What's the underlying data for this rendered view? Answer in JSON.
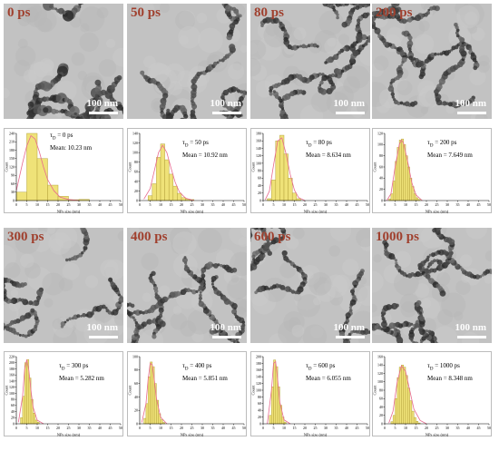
{
  "chart_data": [
    {
      "type": "bar",
      "delay_label": "0 ps",
      "stat_tau": "0 ps",
      "stat_mean": "Mean: 10.23 nm",
      "scale_label": "100 nm",
      "xlabel": "NPs size (nm)",
      "ylabel": "Count",
      "xlim": [
        0,
        50
      ],
      "ylim": [
        0,
        240
      ],
      "xticks": [
        0,
        5,
        10,
        15,
        20,
        25,
        30,
        35,
        40,
        45,
        50
      ],
      "yticks": [
        0,
        30,
        60,
        90,
        120,
        150,
        180,
        210,
        240
      ],
      "bin_starts": [
        0,
        5,
        10,
        15,
        20,
        25,
        30
      ],
      "bin_width": 5,
      "values": [
        30,
        240,
        150,
        55,
        15,
        3,
        4
      ],
      "fit": [
        [
          0,
          35
        ],
        [
          3,
          135
        ],
        [
          5,
          195
        ],
        [
          7,
          232
        ],
        [
          9,
          220
        ],
        [
          11,
          175
        ],
        [
          13,
          120
        ],
        [
          15,
          75
        ],
        [
          18,
          35
        ],
        [
          21,
          12
        ],
        [
          25,
          4
        ],
        [
          30,
          0
        ]
      ]
    },
    {
      "type": "bar",
      "delay_label": "50 ps",
      "stat_tau": "50 ps",
      "stat_mean": "Mean = 10.92 nm",
      "scale_label": "100 nm",
      "xlabel": "NPs size (nm)",
      "ylabel": "Count",
      "xlim": [
        0,
        50
      ],
      "ylim": [
        0,
        140
      ],
      "xticks": [
        0,
        5,
        10,
        15,
        20,
        25,
        30,
        35,
        40,
        45,
        50
      ],
      "yticks": [
        0,
        20,
        40,
        60,
        80,
        100,
        120,
        140
      ],
      "bin_starts": [
        4,
        6,
        8,
        10,
        12,
        14,
        16,
        18,
        20,
        22,
        24
      ],
      "bin_width": 2,
      "values": [
        10,
        35,
        90,
        118,
        85,
        55,
        30,
        15,
        6,
        3,
        2
      ],
      "fit": [
        [
          2,
          3
        ],
        [
          5,
          25
        ],
        [
          7,
          62
        ],
        [
          9,
          100
        ],
        [
          11,
          115
        ],
        [
          13,
          100
        ],
        [
          15,
          68
        ],
        [
          17,
          38
        ],
        [
          19,
          18
        ],
        [
          22,
          5
        ],
        [
          26,
          0
        ]
      ]
    },
    {
      "type": "bar",
      "delay_label": "80 ps",
      "stat_tau": "80 ps",
      "stat_mean": "Mean = 8.634 nm",
      "scale_label": "100 nm",
      "xlabel": "NPs size (nm)",
      "ylabel": "Count",
      "xlim": [
        0,
        50
      ],
      "ylim": [
        0,
        180
      ],
      "xticks": [
        0,
        5,
        10,
        15,
        20,
        25,
        30,
        35,
        40,
        45,
        50
      ],
      "yticks": [
        0,
        20,
        40,
        60,
        80,
        100,
        120,
        140,
        160,
        180
      ],
      "bin_starts": [
        2,
        4,
        6,
        8,
        10,
        12,
        14,
        16
      ],
      "bin_width": 2,
      "values": [
        5,
        55,
        160,
        175,
        125,
        60,
        20,
        5
      ],
      "fit": [
        [
          1,
          2
        ],
        [
          3,
          25
        ],
        [
          5,
          95
        ],
        [
          7,
          160
        ],
        [
          9,
          168
        ],
        [
          11,
          125
        ],
        [
          13,
          70
        ],
        [
          15,
          28
        ],
        [
          17,
          8
        ],
        [
          20,
          0
        ]
      ]
    },
    {
      "type": "bar",
      "delay_label": "200 ps",
      "stat_tau": "200 ps",
      "stat_mean": "Mean = 7.649 nm",
      "scale_label": "100 nm",
      "xlabel": "NPs size (nm)",
      "ylabel": "Count",
      "xlim": [
        0,
        50
      ],
      "ylim": [
        0,
        120
      ],
      "xticks": [
        0,
        5,
        10,
        15,
        20,
        25,
        30,
        35,
        40,
        45,
        50
      ],
      "yticks": [
        0,
        20,
        40,
        60,
        80,
        100,
        120
      ],
      "bin_starts": [
        2,
        3,
        4,
        5,
        6,
        7,
        8,
        9,
        10,
        11,
        12,
        13,
        14,
        15,
        16
      ],
      "bin_width": 1,
      "values": [
        3,
        12,
        35,
        70,
        95,
        108,
        110,
        100,
        80,
        60,
        40,
        25,
        12,
        5,
        2
      ],
      "fit": [
        [
          1,
          0
        ],
        [
          3,
          12
        ],
        [
          5,
          60
        ],
        [
          7,
          100
        ],
        [
          8,
          108
        ],
        [
          9,
          103
        ],
        [
          11,
          70
        ],
        [
          13,
          32
        ],
        [
          15,
          10
        ],
        [
          18,
          0
        ]
      ]
    },
    {
      "type": "bar",
      "delay_label": "300 ps",
      "stat_tau": "300 ps",
      "stat_mean": "Mean = 5.282 nm",
      "scale_label": "100 nm",
      "xlabel": "NPs size (nm)",
      "ylabel": "Count",
      "xlim": [
        0,
        50
      ],
      "ylim": [
        0,
        220
      ],
      "xticks": [
        0,
        5,
        10,
        15,
        20,
        25,
        30,
        35,
        40,
        45,
        50
      ],
      "yticks": [
        0,
        20,
        40,
        60,
        80,
        100,
        120,
        140,
        160,
        180,
        200,
        220
      ],
      "bin_starts": [
        2,
        3,
        4,
        5,
        6,
        7,
        8,
        9,
        10
      ],
      "bin_width": 1,
      "values": [
        20,
        90,
        200,
        210,
        150,
        80,
        35,
        12,
        5
      ],
      "fit": [
        [
          1,
          5
        ],
        [
          3,
          90
        ],
        [
          4,
          180
        ],
        [
          5,
          210
        ],
        [
          6,
          175
        ],
        [
          7,
          110
        ],
        [
          8,
          55
        ],
        [
          10,
          12
        ],
        [
          13,
          0
        ]
      ]
    },
    {
      "type": "bar",
      "delay_label": "400 ps",
      "stat_tau": "400 ps",
      "stat_mean": "Mean = 5.851 nm",
      "scale_label": "100 nm",
      "xlabel": "NPs size (nm)",
      "ylabel": "Count",
      "xlim": [
        0,
        50
      ],
      "ylim": [
        0,
        100
      ],
      "xticks": [
        0,
        5,
        10,
        15,
        20,
        25,
        30,
        35,
        40,
        45,
        50
      ],
      "yticks": [
        0,
        20,
        40,
        60,
        80,
        100
      ],
      "bin_starts": [
        2,
        3,
        4,
        5,
        6,
        7,
        8,
        9,
        10,
        11
      ],
      "bin_width": 1,
      "values": [
        8,
        30,
        70,
        92,
        85,
        60,
        35,
        15,
        6,
        2
      ],
      "fit": [
        [
          1,
          2
        ],
        [
          3,
          30
        ],
        [
          4,
          65
        ],
        [
          5,
          90
        ],
        [
          6,
          88
        ],
        [
          7,
          65
        ],
        [
          8,
          38
        ],
        [
          10,
          10
        ],
        [
          13,
          0
        ]
      ]
    },
    {
      "type": "bar",
      "delay_label": "600 ps",
      "stat_tau": "600 ps",
      "stat_mean": "Mean = 6.055 nm",
      "scale_label": "100 nm",
      "xlabel": "NPs size (nm)",
      "ylabel": "Count",
      "xlim": [
        0,
        50
      ],
      "ylim": [
        0,
        200
      ],
      "xticks": [
        0,
        5,
        10,
        15,
        20,
        25,
        30,
        35,
        40,
        45,
        50
      ],
      "yticks": [
        0,
        20,
        40,
        60,
        80,
        100,
        120,
        140,
        160,
        180,
        200
      ],
      "bin_starts": [
        3,
        4,
        5,
        6,
        7,
        8,
        9,
        10
      ],
      "bin_width": 1,
      "values": [
        25,
        110,
        190,
        170,
        110,
        55,
        20,
        5
      ],
      "fit": [
        [
          2,
          0
        ],
        [
          4,
          100
        ],
        [
          5,
          180
        ],
        [
          6,
          185
        ],
        [
          7,
          130
        ],
        [
          8,
          65
        ],
        [
          10,
          12
        ],
        [
          13,
          0
        ]
      ]
    },
    {
      "type": "bar",
      "delay_label": "1000 ps",
      "stat_tau": "1000 ps",
      "stat_mean": "Mean = 8.348 nm",
      "scale_label": "100 nm",
      "xlabel": "NPs size (nm)",
      "ylabel": "Count",
      "xlim": [
        0,
        50
      ],
      "ylim": [
        0,
        160
      ],
      "xticks": [
        0,
        5,
        10,
        15,
        20,
        25,
        30,
        35,
        40,
        45,
        50
      ],
      "yticks": [
        0,
        20,
        40,
        60,
        80,
        100,
        120,
        140,
        160
      ],
      "bin_starts": [
        3,
        4,
        5,
        6,
        7,
        8,
        9,
        10,
        11,
        12,
        13,
        14,
        15,
        16
      ],
      "bin_width": 1,
      "values": [
        5,
        20,
        60,
        110,
        135,
        140,
        135,
        115,
        85,
        55,
        30,
        15,
        6,
        2
      ],
      "fit": [
        [
          2,
          2
        ],
        [
          4,
          30
        ],
        [
          6,
          100
        ],
        [
          8,
          138
        ],
        [
          10,
          125
        ],
        [
          12,
          80
        ],
        [
          14,
          35
        ],
        [
          17,
          8
        ],
        [
          20,
          0
        ]
      ]
    }
  ]
}
